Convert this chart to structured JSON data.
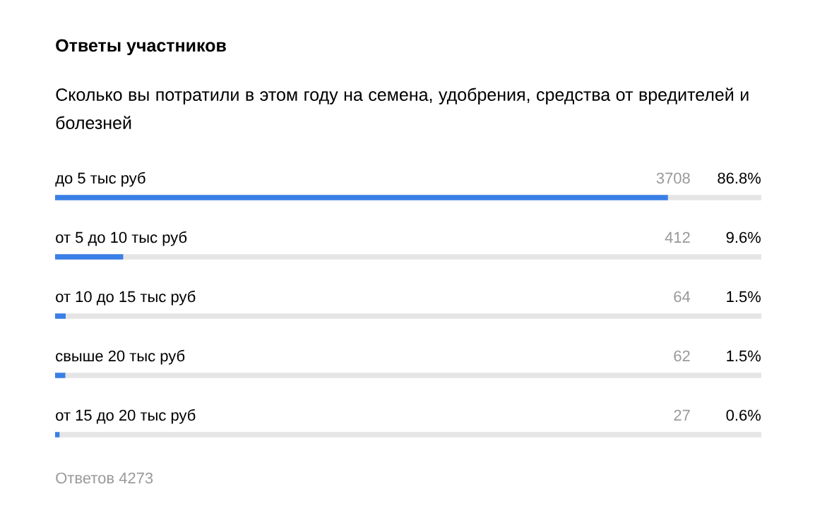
{
  "chart_data": {
    "type": "bar",
    "orientation": "horizontal",
    "title": "Ответы участников",
    "subtitle": "Сколько вы потратили в этом году на семена, удобрения, средства от вредителей и болезней",
    "categories": [
      "до 5 тыс руб",
      "от 5 до 10 тыс руб",
      "от 10 до 15 тыс руб",
      "свыше 20 тыс руб",
      "от 15 до 20 тыс руб"
    ],
    "values": [
      3708,
      412,
      64,
      62,
      27
    ],
    "color": "#3a7fe6",
    "xlim": [
      0,
      4273
    ],
    "data_labels": true,
    "annotations": [
      "86.8%",
      "9.6%",
      "1.5%",
      "1.5%",
      "0.6%",
      "Ответов 4273"
    ]
  }
}
